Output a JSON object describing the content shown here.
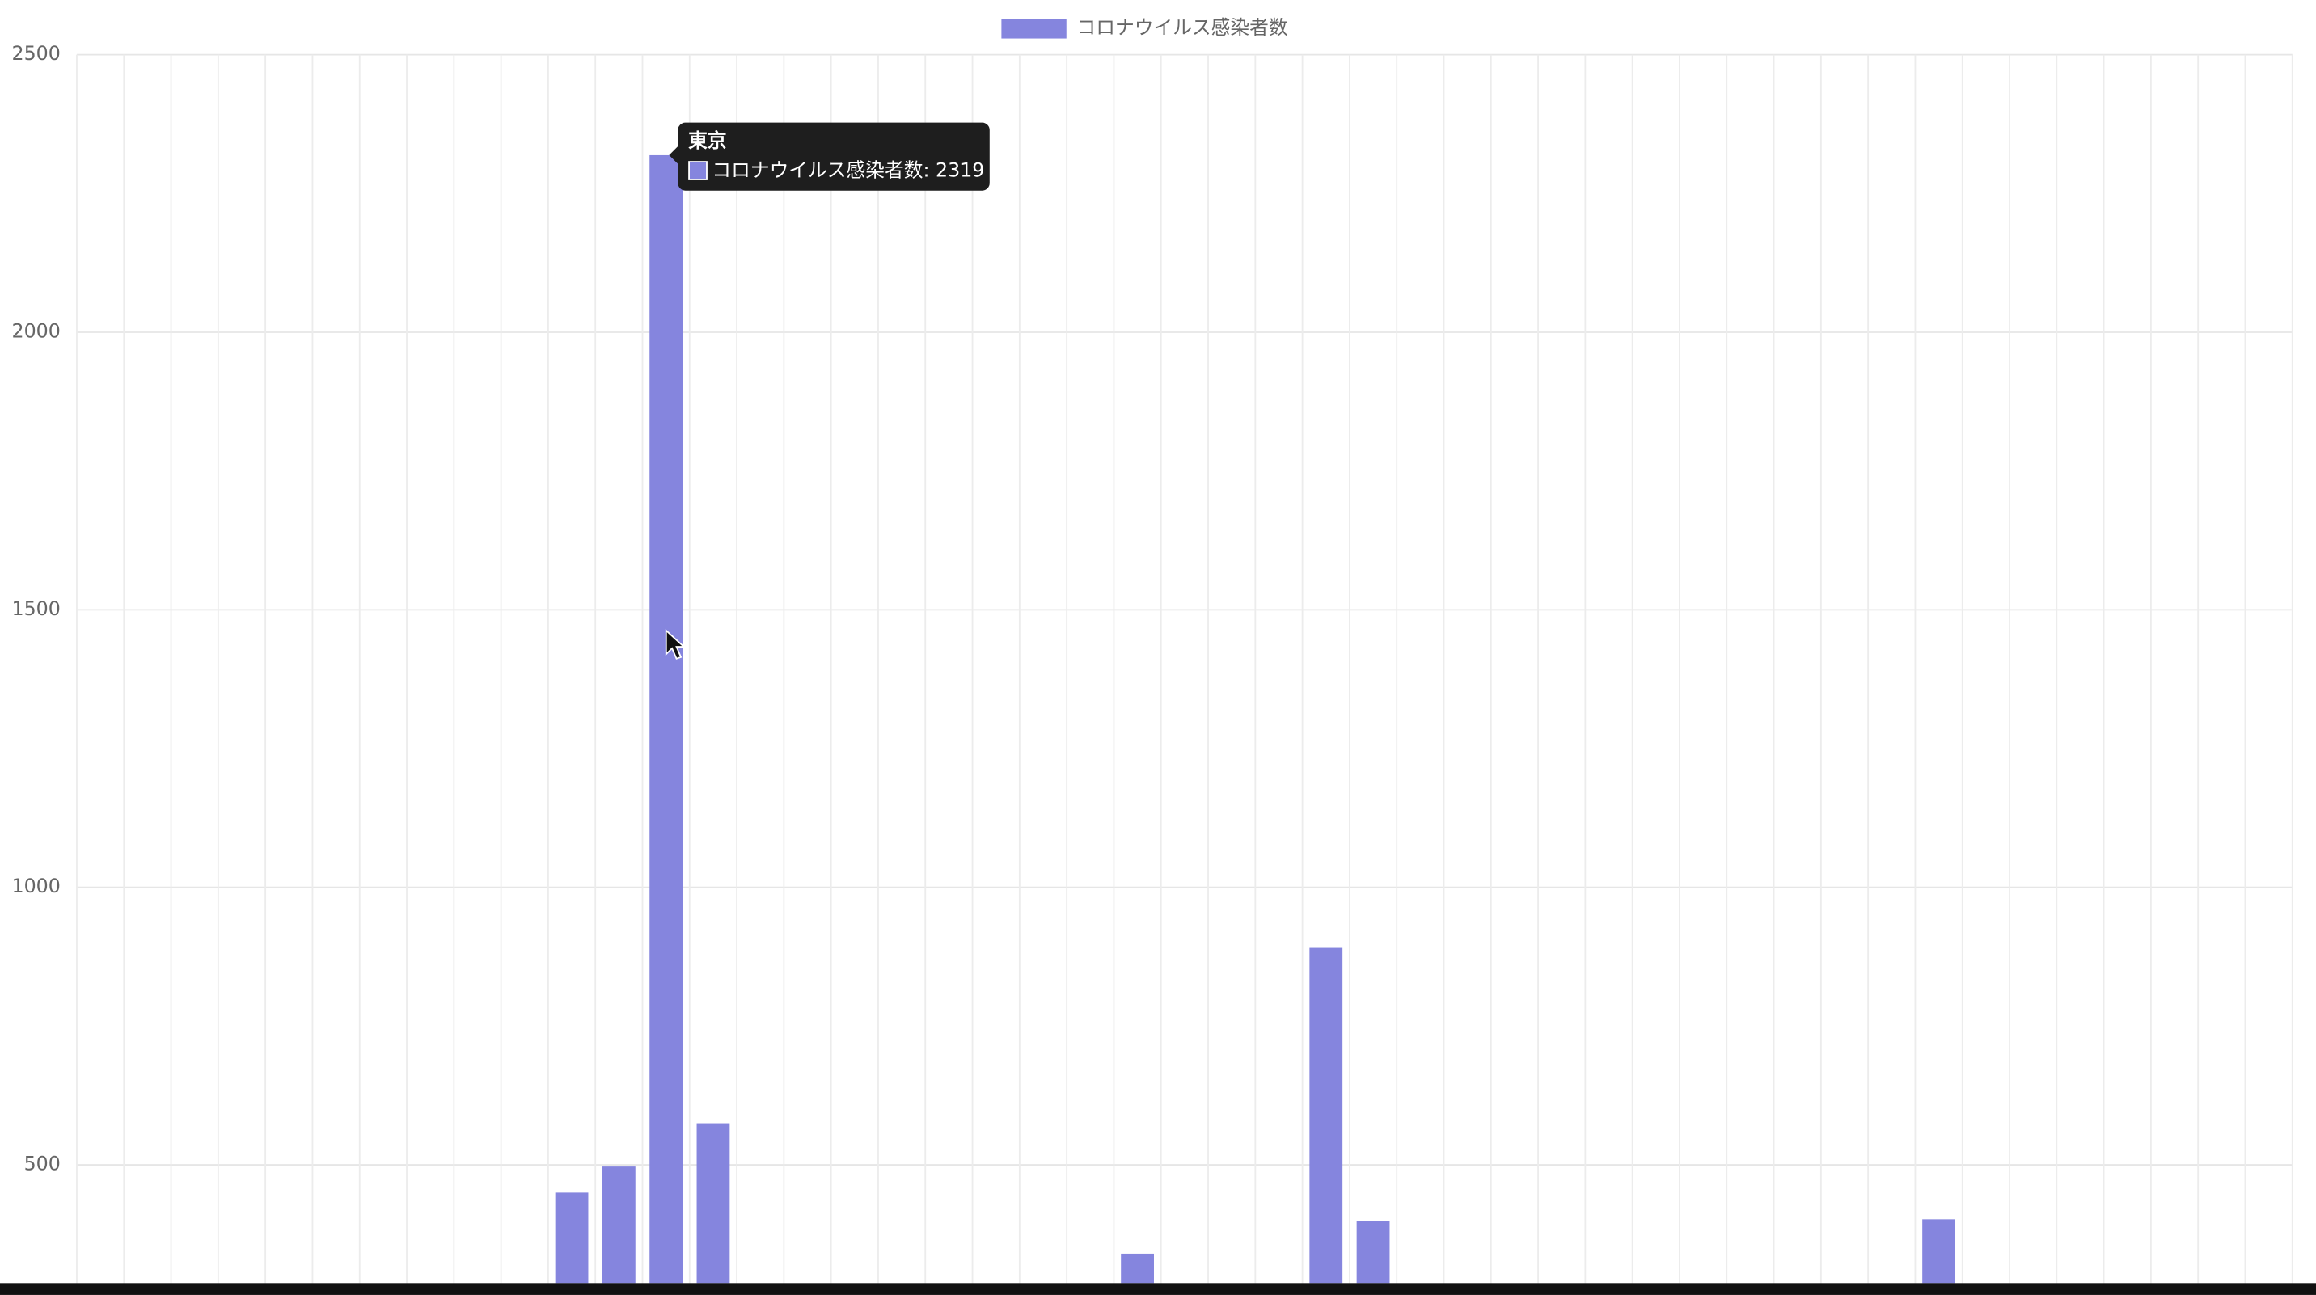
{
  "chart_data": {
    "type": "bar",
    "categories": [
      null,
      null,
      null,
      null,
      null,
      null,
      null,
      null,
      null,
      null,
      null,
      null,
      "東京",
      null,
      null,
      null,
      null,
      null,
      null,
      null,
      null,
      null,
      null,
      null,
      null,
      null,
      null,
      null,
      null,
      null,
      null,
      null,
      null,
      null,
      null,
      null,
      null,
      null,
      null,
      null,
      null,
      null,
      null,
      null,
      null,
      null,
      null
    ],
    "series": [
      {
        "name": "コロナウイルス感染者数",
        "color": "#8585de",
        "values": [
          null,
          null,
          null,
          null,
          null,
          null,
          null,
          null,
          null,
          null,
          450,
          497,
          2319,
          575,
          null,
          null,
          null,
          null,
          null,
          null,
          null,
          null,
          340,
          null,
          null,
          null,
          891,
          399,
          null,
          null,
          null,
          null,
          null,
          null,
          null,
          null,
          null,
          null,
          null,
          402,
          null,
          null,
          null,
          null,
          null,
          null,
          null
        ]
      }
    ],
    "ylim": [
      287,
      2500
    ],
    "yticks": [
      500,
      1000,
      1500,
      2000,
      2500
    ],
    "grid": true,
    "legend": "top",
    "tooltip": {
      "title": "東京",
      "text": "コロナウイルス感染者数: 2319"
    }
  }
}
